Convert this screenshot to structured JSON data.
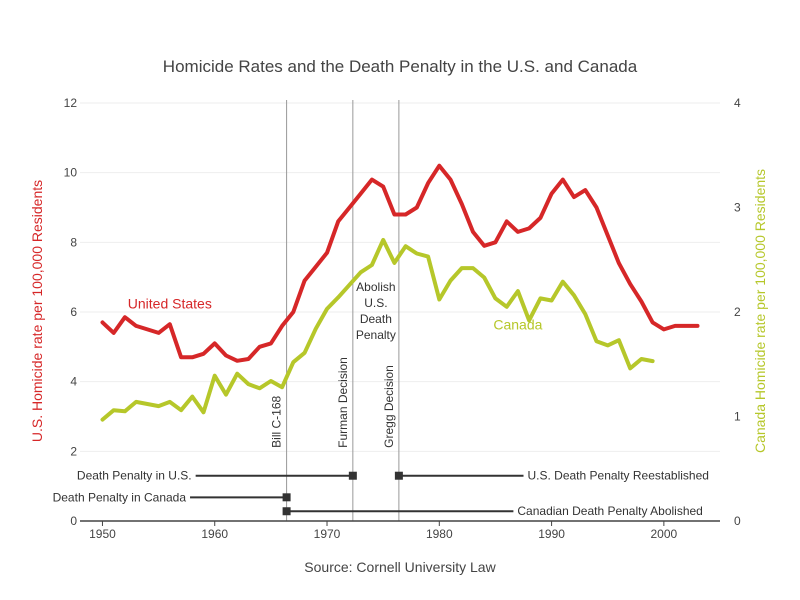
{
  "chart_data": {
    "type": "line",
    "title": "Homicide Rates and the Death Penalty in the U.S. and Canada",
    "source": "Source: Cornell University Law",
    "xlabel": "",
    "xlim": [
      1948,
      2005
    ],
    "x_ticks": [
      "1950",
      "1960",
      "1970",
      "1980",
      "1990",
      "2000"
    ],
    "y_left": {
      "label": "U.S. Homicide rate per 100,000 Residents",
      "range": [
        0,
        12
      ],
      "ticks": [
        "0",
        "2",
        "4",
        "6",
        "8",
        "10",
        "12"
      ],
      "color": "#d62728"
    },
    "y_right": {
      "label": "Canada Homicide rate per 100,000 Residents",
      "range": [
        0,
        4
      ],
      "ticks": [
        "0",
        "1",
        "2",
        "3",
        "4"
      ],
      "color": "#b6c72a"
    },
    "grid": true,
    "series": [
      {
        "name": "United States",
        "axis": "left",
        "color": "#d62728",
        "x": [
          1950,
          1951,
          1952,
          1953,
          1954,
          1955,
          1956,
          1957,
          1958,
          1959,
          1960,
          1961,
          1962,
          1963,
          1964,
          1965,
          1966,
          1967,
          1968,
          1969,
          1970,
          1971,
          1972,
          1973,
          1974,
          1975,
          1976,
          1977,
          1978,
          1979,
          1980,
          1981,
          1982,
          1983,
          1984,
          1985,
          1986,
          1987,
          1988,
          1989,
          1990,
          1991,
          1992,
          1993,
          1994,
          1995,
          1996,
          1997,
          1998,
          1999,
          2000,
          2001,
          2002,
          2003
        ],
        "values": [
          5.7,
          5.4,
          5.85,
          5.6,
          5.5,
          5.4,
          5.65,
          4.7,
          4.7,
          4.8,
          5.1,
          4.75,
          4.6,
          4.65,
          5.0,
          5.1,
          5.6,
          6.0,
          6.9,
          7.3,
          7.7,
          8.6,
          9.0,
          9.4,
          9.8,
          9.6,
          8.8,
          8.8,
          9.0,
          9.7,
          10.2,
          9.8,
          9.1,
          8.3,
          7.9,
          8.0,
          8.6,
          8.3,
          8.4,
          8.7,
          9.4,
          9.8,
          9.3,
          9.5,
          9.0,
          8.2,
          7.4,
          6.8,
          6.3,
          5.7,
          5.5,
          5.6,
          5.6,
          5.6
        ]
      },
      {
        "name": "Canada",
        "axis": "right",
        "color": "#b6c72a",
        "x": [
          1950,
          1951,
          1952,
          1953,
          1954,
          1955,
          1956,
          1957,
          1958,
          1959,
          1960,
          1961,
          1962,
          1963,
          1964,
          1965,
          1966,
          1967,
          1968,
          1969,
          1970,
          1971,
          1972,
          1973,
          1974,
          1975,
          1976,
          1977,
          1978,
          1979,
          1980,
          1981,
          1982,
          1983,
          1984,
          1985,
          1986,
          1987,
          1988,
          1989,
          1990,
          1991,
          1992,
          1993,
          1994,
          1995,
          1996,
          1997,
          1998,
          1999
        ],
        "values": [
          0.97,
          1.06,
          1.05,
          1.14,
          1.12,
          1.1,
          1.14,
          1.06,
          1.19,
          1.04,
          1.39,
          1.21,
          1.41,
          1.31,
          1.27,
          1.34,
          1.28,
          1.52,
          1.61,
          1.84,
          2.03,
          2.14,
          2.26,
          2.38,
          2.45,
          2.69,
          2.47,
          2.63,
          2.56,
          2.53,
          2.12,
          2.3,
          2.42,
          2.42,
          2.33,
          2.13,
          2.05,
          2.2,
          1.92,
          2.13,
          2.11,
          2.29,
          2.16,
          1.98,
          1.72,
          1.68,
          1.73,
          1.46,
          1.55,
          1.53
        ]
      }
    ],
    "series_labels": [
      {
        "text": "United States",
        "x": 1956,
        "y": 6.1,
        "axis": "left"
      },
      {
        "text": "Canada",
        "x": 1987,
        "y": 5.5,
        "axis": "left"
      }
    ],
    "events": [
      {
        "label": "Bill C-168",
        "year": 1966.4
      },
      {
        "label": "Furman Decision",
        "year": 1972.3
      },
      {
        "label": "Gregg Decision",
        "year": 1976.4
      }
    ],
    "abolish_note": [
      "Abolish",
      "U.S.",
      "Death",
      "Penalty"
    ],
    "timeline": [
      {
        "label": "Death Penalty in U.S.",
        "start": 1958.3,
        "end": 1972.3,
        "y": 1.3,
        "marker": "end",
        "label_side": "left"
      },
      {
        "label": "U.S. Death Penalty Reestablished",
        "start": 1976.4,
        "end": 1987.5,
        "y": 1.3,
        "marker": "start",
        "label_side": "right"
      },
      {
        "label": "Death Penalty in Canada",
        "start": 1957.8,
        "end": 1966.4,
        "y": 0.68,
        "marker": "end",
        "label_side": "left"
      },
      {
        "label": "Canadian Death Penalty Abolished",
        "start": 1966.4,
        "end": 1986.6,
        "y": 0.28,
        "marker": "start",
        "label_side": "right"
      }
    ]
  }
}
